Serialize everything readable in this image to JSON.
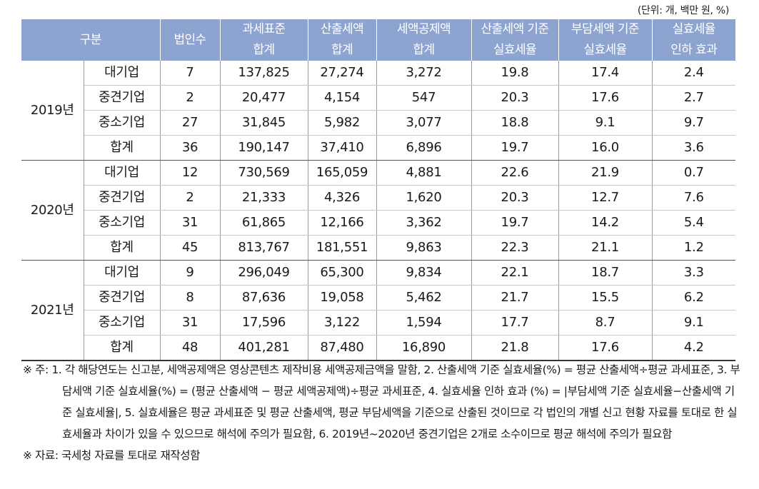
{
  "unit_note": "(단위: 개, 백만 원, %)",
  "headers": {
    "category": "구분",
    "count": "법인수",
    "tax_base": [
      "과세표준",
      "합계"
    ],
    "calc_tax": [
      "산출세액",
      "합계"
    ],
    "credit": [
      "세액공제액",
      "합계"
    ],
    "eff_calc": [
      "산출세액 기준",
      "실효세율"
    ],
    "eff_burden": [
      "부담세액 기준",
      "실효세율"
    ],
    "effect": [
      "실효세율",
      "인하 효과"
    ]
  },
  "groups": [
    {
      "year": "2019년",
      "rows": [
        {
          "type": "대기업",
          "count": "7",
          "tax_base": "137,825",
          "calc_tax": "27,274",
          "credit": "3,272",
          "eff_calc": "19.8",
          "eff_burden": "17.4",
          "effect": "2.4"
        },
        {
          "type": "중견기업",
          "count": "2",
          "tax_base": "20,477",
          "calc_tax": "4,154",
          "credit": "547",
          "eff_calc": "20.3",
          "eff_burden": "17.6",
          "effect": "2.7"
        },
        {
          "type": "중소기업",
          "count": "27",
          "tax_base": "31,845",
          "calc_tax": "5,982",
          "credit": "3,077",
          "eff_calc": "18.8",
          "eff_burden": "9.1",
          "effect": "9.7"
        },
        {
          "type": "합계",
          "count": "36",
          "tax_base": "190,147",
          "calc_tax": "37,410",
          "credit": "6,896",
          "eff_calc": "19.7",
          "eff_burden": "16.0",
          "effect": "3.6"
        }
      ]
    },
    {
      "year": "2020년",
      "rows": [
        {
          "type": "대기업",
          "count": "12",
          "tax_base": "730,569",
          "calc_tax": "165,059",
          "credit": "4,881",
          "eff_calc": "22.6",
          "eff_burden": "21.9",
          "effect": "0.7"
        },
        {
          "type": "중견기업",
          "count": "2",
          "tax_base": "21,333",
          "calc_tax": "4,326",
          "credit": "1,620",
          "eff_calc": "20.3",
          "eff_burden": "12.7",
          "effect": "7.6"
        },
        {
          "type": "중소기업",
          "count": "31",
          "tax_base": "61,865",
          "calc_tax": "12,166",
          "credit": "3,362",
          "eff_calc": "19.7",
          "eff_burden": "14.2",
          "effect": "5.4"
        },
        {
          "type": "합계",
          "count": "45",
          "tax_base": "813,767",
          "calc_tax": "181,551",
          "credit": "9,863",
          "eff_calc": "22.3",
          "eff_burden": "21.1",
          "effect": "1.2"
        }
      ]
    },
    {
      "year": "2021년",
      "rows": [
        {
          "type": "대기업",
          "count": "9",
          "tax_base": "296,049",
          "calc_tax": "65,300",
          "credit": "9,834",
          "eff_calc": "22.1",
          "eff_burden": "18.7",
          "effect": "3.3"
        },
        {
          "type": "중견기업",
          "count": "8",
          "tax_base": "87,636",
          "calc_tax": "19,058",
          "credit": "5,462",
          "eff_calc": "21.7",
          "eff_burden": "15.5",
          "effect": "6.2"
        },
        {
          "type": "중소기업",
          "count": "31",
          "tax_base": "17,596",
          "calc_tax": "3,122",
          "credit": "1,594",
          "eff_calc": "17.7",
          "eff_burden": "8.7",
          "effect": "9.1"
        },
        {
          "type": "합계",
          "count": "48",
          "tax_base": "401,281",
          "calc_tax": "87,480",
          "credit": "16,890",
          "eff_calc": "21.8",
          "eff_burden": "17.6",
          "effect": "4.2"
        }
      ]
    }
  ],
  "notes": {
    "note1": "※ 주: 1. 각 해당연도는 신고분, 세액공제액은 영상콘텐츠 제작비용 세액공제금액을 말함, 2. 산출세액 기준 실효세율(%) = 평균 산출세액÷평균 과세표준, 3. 부담세액 기준 실효세율(%) = (평균 산출세액 − 평균 세액공제액)÷평균 과세표준, 4. 실효세율 인하 효과 (%) = |부담세액 기준 실효세율−산출세액 기준 실효세율|, 5. 실효세율은 평균 과세표준 및 평균 산출세액, 평균 부담세액을 기준으로 산출된 것이므로 각 법인의 개별 신고 현황 자료를 토대로 한 실효세율과 차이가 있을 수 있으므로 해석에 주의가 필요함, 6. 2019년~2020년 중견기업은 2개로 소수이므로 평균 해석에 주의가 필요함",
    "note2": "※ 자료: 국세청 자료를 토대로 재작성함"
  }
}
